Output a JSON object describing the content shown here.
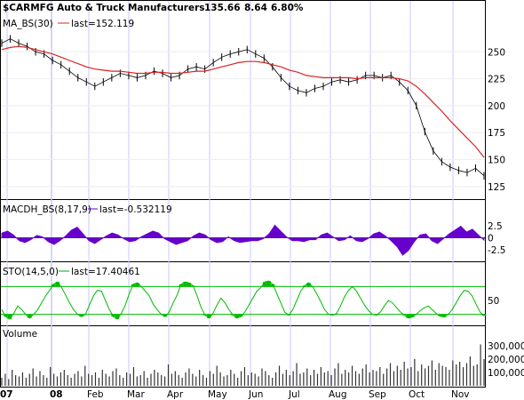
{
  "chart_data": [
    {
      "type": "line",
      "panel": "price",
      "title": "$CARMFG Auto & Truck Manufacturers",
      "last_value": "135.66",
      "change": "8.64",
      "change_pct": "6.80%",
      "change_color": "#00aa00",
      "overlay_label": "MA_BS(30)",
      "overlay_last": "last=152.119",
      "overlay_color": "#dd2222",
      "price_color": "#000000",
      "ylim": [
        115,
        270
      ],
      "yticks": [
        "250",
        "225",
        "200",
        "175",
        "150",
        "125"
      ],
      "ytick_values": [
        250,
        225,
        200,
        175,
        150,
        125
      ],
      "series": [
        {
          "values": [
            258,
            262,
            258,
            255,
            250,
            248,
            242,
            238,
            232,
            226,
            222,
            218,
            222,
            226,
            230,
            228,
            226,
            228,
            232,
            230,
            226,
            228,
            234,
            236,
            234,
            240,
            245,
            248,
            250,
            252,
            248,
            244,
            236,
            226,
            218,
            214,
            212,
            216,
            218,
            222,
            224,
            222,
            224,
            228,
            228,
            226,
            228,
            222,
            214,
            200,
            176,
            158,
            148,
            143,
            140,
            138,
            142,
            135
          ]
        },
        {
          "values": [
            252,
            254,
            255,
            254,
            252,
            250,
            248,
            245,
            242,
            239,
            236,
            234,
            233,
            232,
            232,
            231,
            230,
            230,
            231,
            231,
            230,
            230,
            231,
            232,
            232,
            234,
            236,
            238,
            240,
            241,
            241,
            240,
            238,
            236,
            233,
            231,
            228,
            227,
            226,
            226,
            226,
            226,
            225,
            226,
            226,
            226,
            226,
            225,
            223,
            218,
            211,
            203,
            195,
            186,
            178,
            170,
            162,
            152
          ]
        }
      ]
    },
    {
      "type": "area",
      "panel": "macd",
      "label": "MACDH_BS(8,17,9)",
      "last": "last=-0.532119",
      "color": "#6600cc",
      "label_color": "#6600cc",
      "ylim": [
        -4.5,
        4.5
      ],
      "yticks": [
        "2.5",
        "0",
        "-2.5"
      ],
      "ytick_values": [
        2.5,
        0,
        -2.5
      ],
      "values": [
        1.0,
        1.4,
        0.6,
        -0.6,
        -1.0,
        -0.4,
        0.5,
        0.2,
        -0.8,
        -1.4,
        -0.6,
        0.4,
        1.6,
        2.2,
        0.8,
        -0.6,
        -1.2,
        -0.4,
        0.4,
        1.0,
        0.6,
        -0.2,
        -0.8,
        -0.6,
        0.2,
        0.8,
        1.4,
        1.0,
        -0.2,
        -0.8,
        -1.4,
        -1.0,
        -0.6,
        0.4,
        1.0,
        0.6,
        -0.4,
        -1.0,
        -0.8,
        0.2,
        -0.6,
        -1.0,
        -0.8,
        -0.6,
        -0.6,
        -0.2,
        0.8,
        2.6,
        1.4,
        0.2,
        -0.6,
        -0.6,
        -0.8,
        -0.4,
        -0.4,
        0.6,
        1.0,
        0.2,
        -0.6,
        -0.4,
        0.4,
        -0.6,
        -0.8,
        -0.2,
        0.8,
        1.2,
        0.4,
        -0.6,
        -1.8,
        -3.6,
        -2.6,
        -0.8,
        0.6,
        0.8,
        -0.6,
        -1.2,
        -0.2,
        0.8,
        1.6,
        2.4,
        1.2,
        1.8,
        0.6,
        -0.5
      ]
    },
    {
      "type": "line",
      "panel": "stochastic",
      "label": "STO(14,5,0)",
      "last": "last=17.40461",
      "color": "#00bb00",
      "label_color": "#00aa00",
      "ylim": [
        0,
        100
      ],
      "yticks": [
        "50"
      ],
      "ytick_values": [
        50
      ],
      "bands": [
        80,
        20
      ],
      "values": [
        30,
        15,
        10,
        22,
        38,
        30,
        20,
        12,
        20,
        30,
        45,
        60,
        72,
        85,
        90,
        78,
        62,
        45,
        30,
        20,
        15,
        20,
        40,
        60,
        72,
        70,
        50,
        30,
        15,
        10,
        22,
        40,
        65,
        85,
        88,
        80,
        70,
        60,
        42,
        30,
        20,
        15,
        25,
        45,
        62,
        85,
        90,
        88,
        82,
        60,
        35,
        18,
        12,
        22,
        40,
        55,
        45,
        30,
        18,
        12,
        15,
        25,
        40,
        55,
        70,
        78,
        90,
        92,
        85,
        65,
        45,
        25,
        18,
        30,
        50,
        70,
        82,
        88,
        80,
        65,
        48,
        30,
        20,
        18,
        22,
        38,
        58,
        72,
        80,
        70,
        55,
        40,
        28,
        20,
        18,
        25,
        38,
        50,
        45,
        35,
        25,
        18,
        12,
        14,
        20,
        28,
        34,
        38,
        30,
        22,
        16,
        14,
        20,
        30,
        45,
        60,
        72,
        70,
        60,
        42,
        25,
        17
      ]
    },
    {
      "type": "bar",
      "panel": "volume",
      "label": "Volume",
      "color": "#333333",
      "ylim": [
        0,
        360000
      ],
      "yticks": [
        "300,000",
        "200,000",
        "100,000"
      ],
      "ytick_values": [
        300000,
        200000,
        100000
      ],
      "values": [
        60000,
        90000,
        50000,
        120000,
        80000,
        70000,
        100000,
        60000,
        90000,
        130000,
        70000,
        110000,
        80000,
        60000,
        140000,
        90000,
        70000,
        100000,
        120000,
        80000,
        60000,
        90000,
        110000,
        70000,
        150000,
        90000,
        80000,
        100000,
        60000,
        120000,
        90000,
        70000,
        110000,
        130000,
        80000,
        60000,
        100000,
        90000,
        140000,
        70000,
        80000,
        110000,
        60000,
        90000,
        120000,
        100000,
        80000,
        70000,
        160000,
        90000,
        110000,
        80000,
        60000,
        100000,
        130000,
        90000,
        70000,
        120000,
        80000,
        60000,
        110000,
        90000,
        150000,
        100000,
        70000,
        80000,
        120000,
        90000,
        60000,
        110000,
        140000,
        80000,
        100000,
        90000,
        70000,
        130000,
        110000,
        80000,
        60000,
        100000,
        150000,
        90000,
        120000,
        80000,
        110000,
        170000,
        90000,
        100000,
        130000,
        80000,
        120000,
        90000,
        140000,
        100000,
        110000,
        80000,
        130000,
        170000,
        90000,
        120000,
        100000,
        150000,
        110000,
        90000,
        130000,
        160000,
        100000,
        120000,
        110000,
        140000,
        90000,
        130000,
        170000,
        110000,
        150000,
        120000,
        180000,
        130000,
        140000,
        200000,
        110000,
        160000,
        130000,
        150000,
        190000,
        120000,
        170000,
        150000,
        140000,
        120000,
        190000,
        160000,
        180000,
        140000,
        170000,
        220000,
        150000,
        160000,
        310000,
        200000
      ]
    }
  ],
  "x_axis": {
    "labels": [
      "07",
      "08",
      "Feb",
      "Mar",
      "Apr",
      "May",
      "Jun",
      "Jul",
      "Aug",
      "Sep",
      "Oct",
      "Nov"
    ],
    "months_bold": [
      "07",
      "08"
    ]
  }
}
